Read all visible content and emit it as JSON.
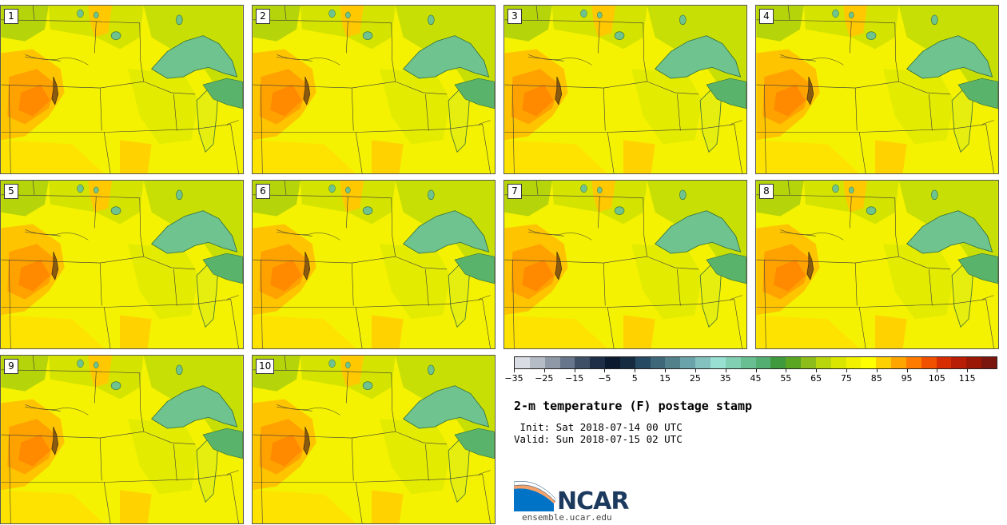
{
  "panels": [
    {
      "label": "1"
    },
    {
      "label": "2"
    },
    {
      "label": "3"
    },
    {
      "label": "4"
    },
    {
      "label": "5"
    },
    {
      "label": "6"
    },
    {
      "label": "7"
    },
    {
      "label": "8"
    },
    {
      "label": "9"
    },
    {
      "label": "10"
    }
  ],
  "colorbar": {
    "colors": [
      "#d9dde3",
      "#b5bcc6",
      "#8e98a6",
      "#67768a",
      "#3f4f66",
      "#1f2e47",
      "#0c1a30",
      "#162a40",
      "#274a63",
      "#3e6779",
      "#52818c",
      "#6ba3aa",
      "#84c2c0",
      "#98e0d2",
      "#82d0b4",
      "#68bf91",
      "#53ae72",
      "#3f9a3e",
      "#5aa623",
      "#8cbd1a",
      "#b9d60c",
      "#dbe600",
      "#f2f200",
      "#ffff00",
      "#ffd000",
      "#ffa500",
      "#ff7b00",
      "#f05000",
      "#d62e00",
      "#b81d05",
      "#9c1806",
      "#7a160d"
    ],
    "tick_labels": [
      "−35",
      "−25",
      "−15",
      "−5",
      "5",
      "15",
      "25",
      "35",
      "45",
      "55",
      "65",
      "75",
      "85",
      "95",
      "105",
      "115"
    ]
  },
  "title": "2-m temperature (F) postage stamp",
  "init": " Init: Sat 2018-07-14 00 UTC",
  "valid": "Valid: Sun 2018-07-15 02 UTC",
  "logo": {
    "text": "NCAR",
    "url": "ensemble.ucar.edu"
  }
}
